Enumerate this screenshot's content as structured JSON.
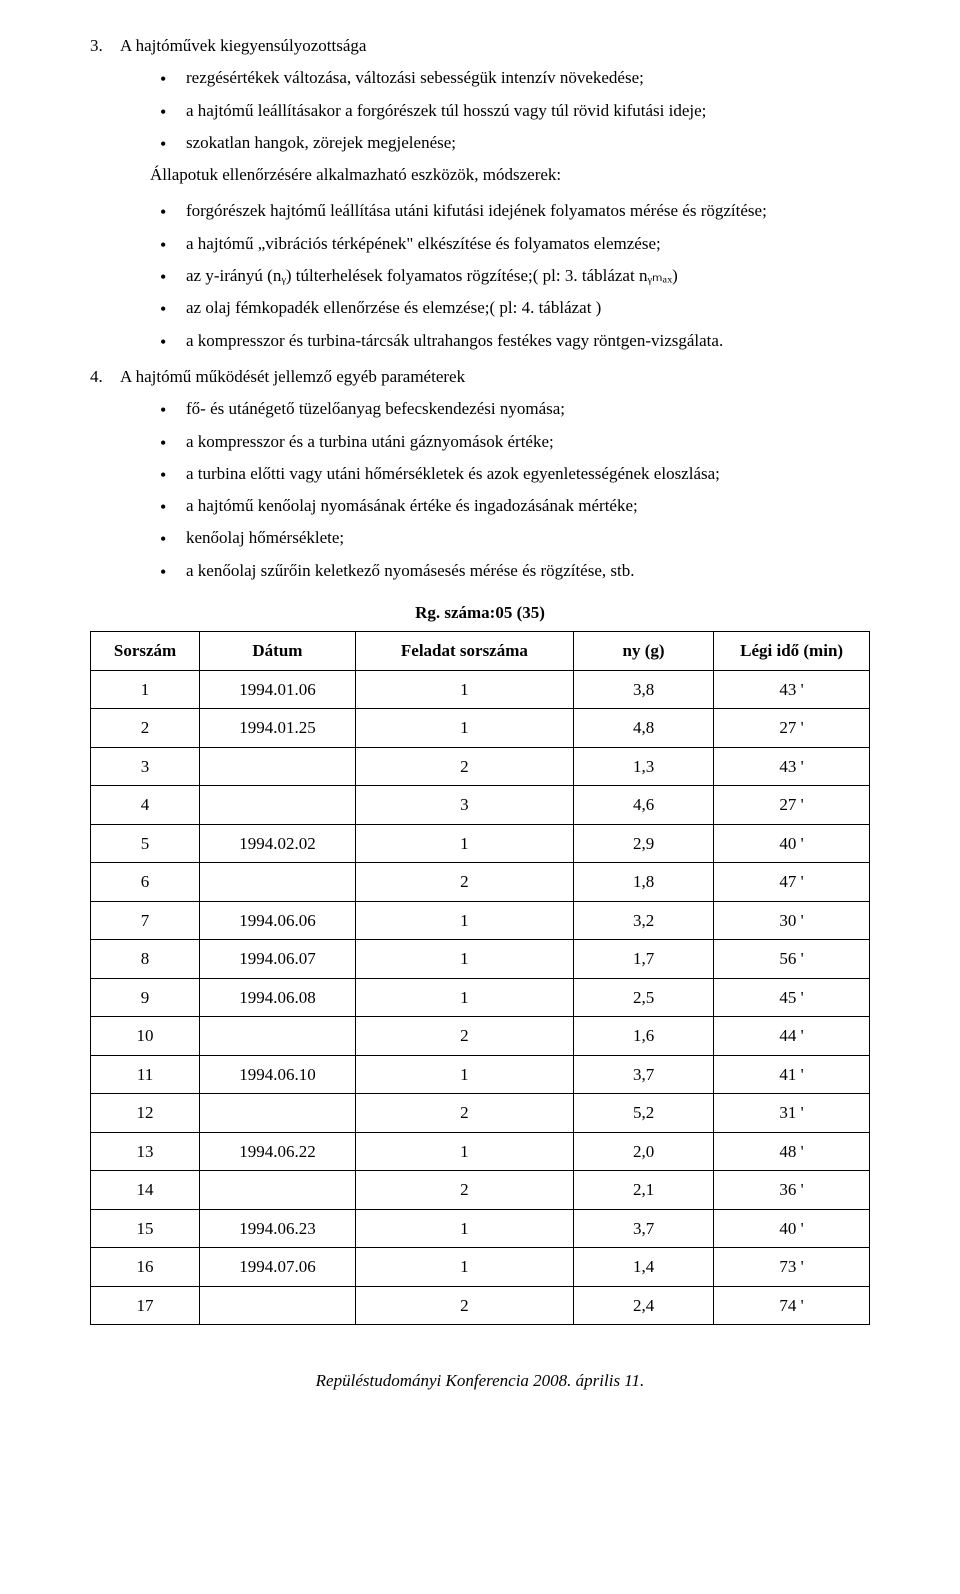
{
  "section3": {
    "num": "3.",
    "title": "A hajtóművek kiegyensúlyozottsága",
    "bullets_a": [
      "rezgésértékek változása, változási sebességük intenzív növekedése;",
      "a hajtómű leállításakor a forgórészek túl hosszú vagy túl rövid kifutási ideje;",
      "szokatlan hangok, zörejek megjelenése;"
    ],
    "subtitle": "Állapotuk ellenőrzésére alkalmazható eszközök, módszerek:",
    "bullets_b": [
      "forgórészek hajtómű leállítása utáni kifutási idejének folyamatos mérése és rögzítése;",
      "a hajtómű „vibrációs térképének\" elkészítése és folyamatos elemzése;",
      "az y-irányú (nᵧ) túlterhelések folyamatos rögzítése;( pl: 3. táblázat nᵧₘₐₓ)",
      "az olaj fémkopadék ellenőrzése és elemzése;( pl: 4. táblázat )",
      "a kompresszor és turbina-tárcsák ultrahangos festékes vagy röntgen-vizsgálata."
    ]
  },
  "section4": {
    "num": "4.",
    "title": "A hajtómű működését jellemző egyéb paraméterek",
    "bullets": [
      "fő- és utánégető tüzelőanyag befecskendezési nyomása;",
      "a kompresszor és a turbina utáni gáznyomások értéke;",
      "a turbina előtti vagy utáni hőmérsékletek és azok egyenletességének eloszlása;",
      "a hajtómű kenőolaj nyomásának értéke és ingadozásának mértéke;",
      "kenőolaj hőmérséklete;",
      "a kenőolaj szűrőin keletkező nyomásesés mérése és rögzítése, stb."
    ]
  },
  "table": {
    "title": "Rg. száma:05 (35)",
    "columns": [
      "Sorszám",
      "Dátum",
      "Feladat sorszáma",
      "ny (g)",
      "Légi idő (min)"
    ],
    "rows": [
      [
        "1",
        "1994.01.06",
        "1",
        "3,8",
        "43 '"
      ],
      [
        "2",
        "1994.01.25",
        "1",
        "4,8",
        "27 '"
      ],
      [
        "3",
        "",
        "2",
        "1,3",
        "43 '"
      ],
      [
        "4",
        "",
        "3",
        "4,6",
        "27 '"
      ],
      [
        "5",
        "1994.02.02",
        "1",
        "2,9",
        "40 '"
      ],
      [
        "6",
        "",
        "2",
        "1,8",
        "47 '"
      ],
      [
        "7",
        "1994.06.06",
        "1",
        "3,2",
        "30 '"
      ],
      [
        "8",
        "1994.06.07",
        "1",
        "1,7",
        "56 '"
      ],
      [
        "9",
        "1994.06.08",
        "1",
        "2,5",
        "45 '"
      ],
      [
        "10",
        "",
        "2",
        "1,6",
        "44 '"
      ],
      [
        "11",
        "1994.06.10",
        "1",
        "3,7",
        "41 '"
      ],
      [
        "12",
        "",
        "2",
        "5,2",
        "31 '"
      ],
      [
        "13",
        "1994.06.22",
        "1",
        "2,0",
        "48 '"
      ],
      [
        "14",
        "",
        "2",
        "2,1",
        "36 '"
      ],
      [
        "15",
        "1994.06.23",
        "1",
        "3,7",
        "40 '"
      ],
      [
        "16",
        "1994.07.06",
        "1",
        "1,4",
        "73 '"
      ],
      [
        "17",
        "",
        "2",
        "2,4",
        "74 '"
      ]
    ],
    "col_widths": [
      "14%",
      "20%",
      "28%",
      "18%",
      "20%"
    ]
  },
  "footer": "Repüléstudományi Konferencia 2008. április 11."
}
